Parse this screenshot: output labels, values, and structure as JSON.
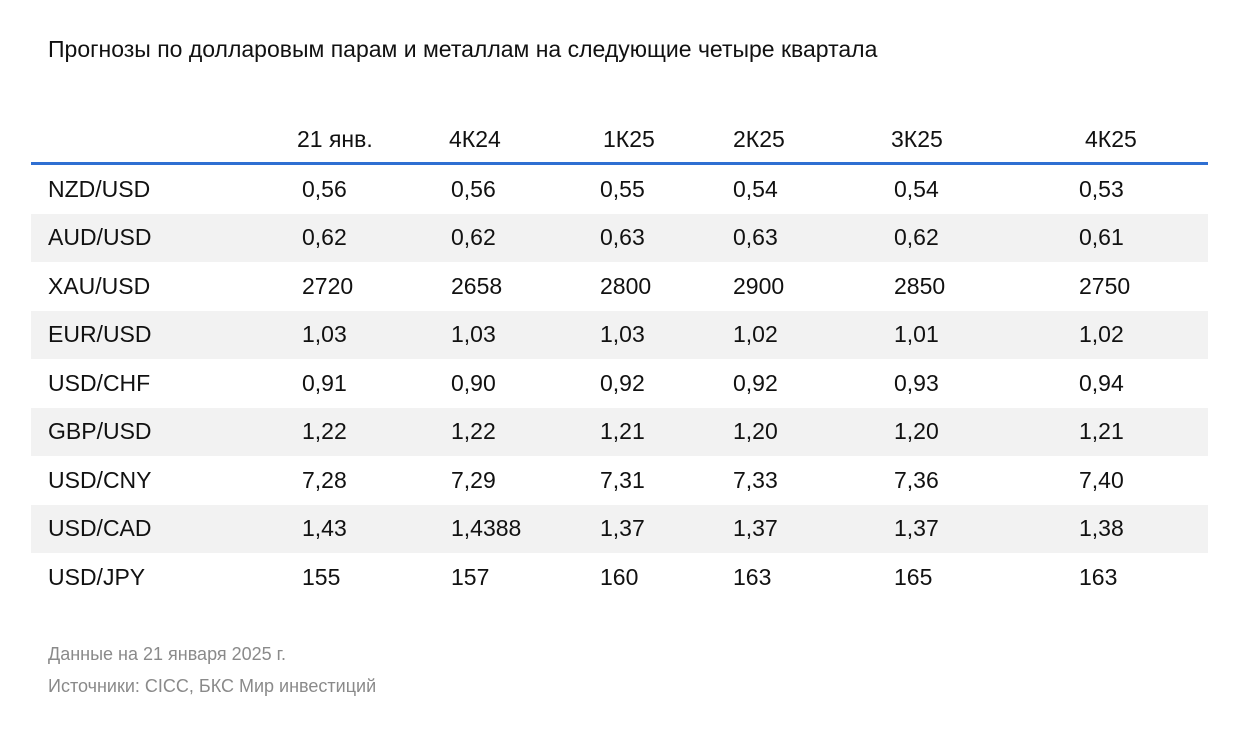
{
  "title": "Прогнозы по долларовым парам и металлам на следующие четыре квартала",
  "table": {
    "headers": [
      "",
      "21 янв.",
      "4К24",
      "1К25",
      "2К25",
      "3К25",
      "4К25"
    ],
    "rows": [
      {
        "pair": "NZD/USD",
        "values": [
          "0,56",
          "0,56",
          "0,55",
          "0,54",
          "0,54",
          "0,53"
        ]
      },
      {
        "pair": "AUD/USD",
        "values": [
          "0,62",
          "0,62",
          "0,63",
          "0,63",
          "0,62",
          "0,61"
        ]
      },
      {
        "pair": "XAU/USD",
        "values": [
          "2720",
          "2658",
          "2800",
          "2900",
          "2850",
          "2750"
        ]
      },
      {
        "pair": "EUR/USD",
        "values": [
          "1,03",
          "1,03",
          "1,03",
          "1,02",
          "1,01",
          "1,02"
        ]
      },
      {
        "pair": "USD/CHF",
        "values": [
          "0,91",
          "0,90",
          "0,92",
          "0,92",
          "0,93",
          "0,94"
        ]
      },
      {
        "pair": "GBP/USD",
        "values": [
          "1,22",
          "1,22",
          "1,21",
          "1,20",
          "1,20",
          "1,21"
        ]
      },
      {
        "pair": "USD/CNY",
        "values": [
          "7,28",
          "7,29",
          "7,31",
          "7,33",
          "7,36",
          "7,40"
        ]
      },
      {
        "pair": "USD/CAD",
        "values": [
          "1,43",
          "1,4388",
          "1,37",
          "1,37",
          "1,37",
          "1,38"
        ]
      },
      {
        "pair": "USD/JPY",
        "values": [
          "155",
          "157",
          "160",
          "163",
          "165",
          "163"
        ]
      }
    ]
  },
  "footnotes": {
    "date": "Данные на 21 января 2025 г.",
    "sources": "Источники: CICC, БКС Мир инвестиций"
  },
  "colors": {
    "header_rule": "#2f6fd2",
    "row_shade": "#f2f2f2",
    "footnote_text": "#8a8a8a"
  }
}
